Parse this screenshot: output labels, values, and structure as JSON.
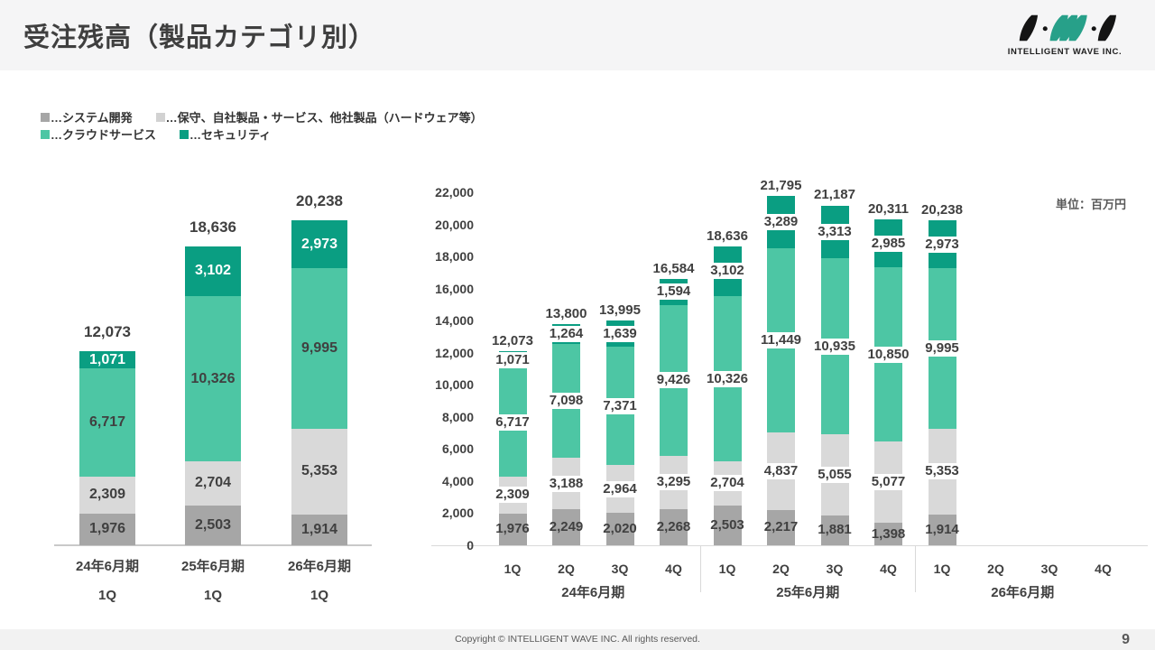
{
  "header": {
    "title": "受注残高（製品カテゴリ別）",
    "logo_text": "INTELLIGENT WAVE INC."
  },
  "legend": {
    "prefix": "…",
    "items": [
      {
        "label": "システム開発",
        "color": "#a6a6a6"
      },
      {
        "label": "保守、自社製品・サービス、他社製品（ハードウェア等）",
        "color": "#d2d2d2"
      },
      {
        "label": "クラウドサービス",
        "color": "#4dc6a4"
      },
      {
        "label": "セキュリティ",
        "color": "#0a9e82"
      }
    ]
  },
  "unit_note": "単位：百万円",
  "chart_data": [
    {
      "type": "bar",
      "stacked": true,
      "name": "order-backlog-1q-comparison",
      "y_axis": "hidden",
      "ylim": [
        0,
        22000
      ],
      "categories": [
        {
          "year": "24年6月期",
          "quarter": "1Q"
        },
        {
          "year": "25年6月期",
          "quarter": "1Q"
        },
        {
          "year": "26年6月期",
          "quarter": "1Q"
        }
      ],
      "series": [
        {
          "name": "システム開発",
          "color": "#a6a6a6",
          "values": [
            1976,
            2503,
            1914
          ]
        },
        {
          "name": "保守、自社製品・サービス、他社製品（ハードウェア等）",
          "color": "#d9d9d9",
          "values": [
            2309,
            2704,
            5353
          ]
        },
        {
          "name": "クラウドサービス",
          "color": "#4dc6a4",
          "values": [
            6717,
            10326,
            9995
          ]
        },
        {
          "name": "セキュリティ",
          "color": "#0a9e82",
          "label_color": "#ffffff",
          "values": [
            1071,
            3102,
            2973
          ]
        }
      ],
      "totals": [
        12073,
        18636,
        20238
      ]
    },
    {
      "type": "bar",
      "stacked": true,
      "name": "order-backlog-quarterly",
      "grid": false,
      "ylim": [
        0,
        22000
      ],
      "ytick_step": 2000,
      "groups": [
        {
          "year": "24年6月期",
          "quarters": [
            "1Q",
            "2Q",
            "3Q",
            "4Q"
          ]
        },
        {
          "year": "25年6月期",
          "quarters": [
            "1Q",
            "2Q",
            "3Q",
            "4Q"
          ]
        },
        {
          "year": "26年6月期",
          "quarters": [
            "1Q",
            "2Q",
            "3Q",
            "4Q"
          ]
        }
      ],
      "series": [
        {
          "name": "システム開発",
          "color": "#a6a6a6",
          "label_boxed": false,
          "values": [
            1976,
            2249,
            2020,
            2268,
            2503,
            2217,
            1881,
            1398,
            1914,
            null,
            null,
            null
          ]
        },
        {
          "name": "保守、自社製品・サービス、他社製品（ハードウェア等）",
          "color": "#d9d9d9",
          "label_boxed": true,
          "values": [
            2309,
            3188,
            2964,
            3295,
            2704,
            4837,
            5055,
            5077,
            5353,
            null,
            null,
            null
          ]
        },
        {
          "name": "クラウドサービス",
          "color": "#4dc6a4",
          "label_boxed": true,
          "values": [
            6717,
            7098,
            7371,
            9426,
            10326,
            11449,
            10935,
            10850,
            9995,
            null,
            null,
            null
          ]
        },
        {
          "name": "セキュリティ",
          "color": "#0a9e82",
          "label_boxed": true,
          "values": [
            1071,
            1264,
            1639,
            1594,
            3102,
            3289,
            3313,
            2985,
            2973,
            null,
            null,
            null
          ]
        }
      ],
      "totals": [
        12073,
        13800,
        13995,
        16584,
        18636,
        21795,
        21187,
        20311,
        20238,
        null,
        null,
        null
      ]
    }
  ],
  "footer": {
    "copyright": "Copyright © INTELLIGENT WAVE INC. All rights reserved.",
    "page_number": "9"
  }
}
